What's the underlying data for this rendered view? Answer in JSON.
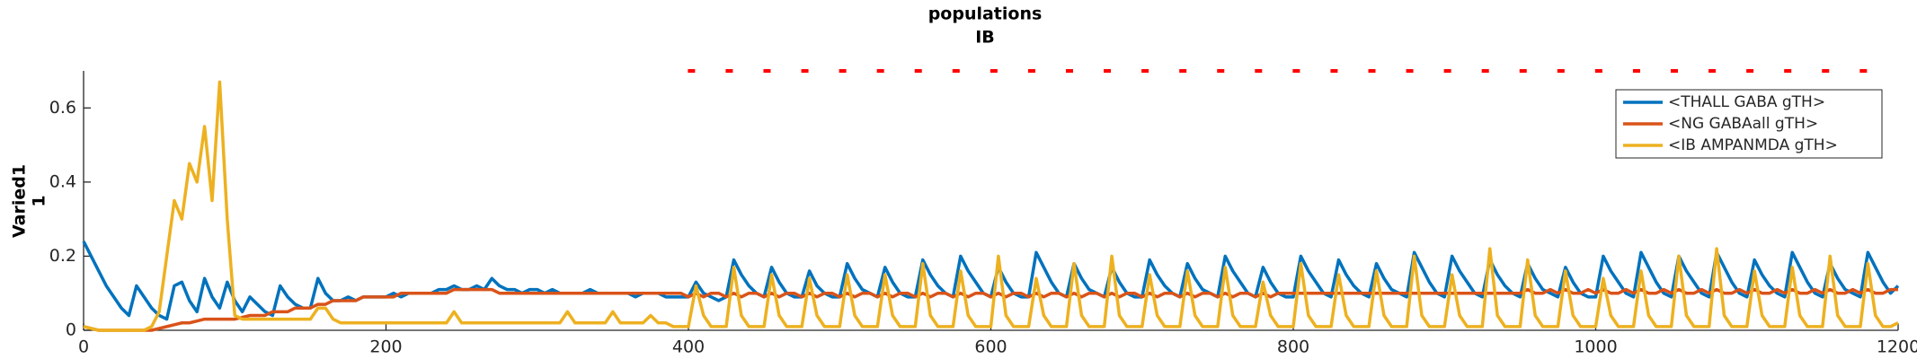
{
  "chart_data": {
    "type": "line",
    "title": "populations",
    "subtitle": "IB",
    "ylabel": [
      "Varied1",
      "1"
    ],
    "xlim": [
      0,
      1200
    ],
    "ylim": [
      0,
      0.7
    ],
    "xticks": [
      0,
      200,
      400,
      600,
      800,
      1000,
      1200
    ],
    "yticks": [
      0,
      0.2,
      0.4,
      0.6
    ],
    "grid": false,
    "legend": "northeast",
    "x": [
      0,
      5,
      10,
      15,
      20,
      25,
      30,
      35,
      40,
      45,
      50,
      55,
      60,
      65,
      70,
      75,
      80,
      85,
      90,
      95,
      100,
      105,
      110,
      115,
      120,
      125,
      130,
      135,
      140,
      145,
      150,
      155,
      160,
      165,
      170,
      175,
      180,
      185,
      190,
      195,
      200,
      205,
      210,
      215,
      220,
      225,
      230,
      235,
      240,
      245,
      250,
      255,
      260,
      265,
      270,
      275,
      280,
      285,
      290,
      295,
      300,
      305,
      310,
      315,
      320,
      325,
      330,
      335,
      340,
      345,
      350,
      355,
      360,
      365,
      370,
      375,
      380,
      385,
      390,
      395,
      400,
      405,
      410,
      415,
      420,
      425,
      430,
      435,
      440,
      445,
      450,
      455,
      460,
      465,
      470,
      475,
      480,
      485,
      490,
      495,
      500,
      505,
      510,
      515,
      520,
      525,
      530,
      535,
      540,
      545,
      550,
      555,
      560,
      565,
      570,
      575,
      580,
      585,
      590,
      595,
      600,
      605,
      610,
      615,
      620,
      625,
      630,
      635,
      640,
      645,
      650,
      655,
      660,
      665,
      670,
      675,
      680,
      685,
      690,
      695,
      700,
      705,
      710,
      715,
      720,
      725,
      730,
      735,
      740,
      745,
      750,
      755,
      760,
      765,
      770,
      775,
      780,
      785,
      790,
      795,
      800,
      805,
      810,
      815,
      820,
      825,
      830,
      835,
      840,
      845,
      850,
      855,
      860,
      865,
      870,
      875,
      880,
      885,
      890,
      895,
      900,
      905,
      910,
      915,
      920,
      925,
      930,
      935,
      940,
      945,
      950,
      955,
      960,
      965,
      970,
      975,
      980,
      985,
      990,
      995,
      1000,
      1005,
      1010,
      1015,
      1020,
      1025,
      1030,
      1035,
      1040,
      1045,
      1050,
      1055,
      1060,
      1065,
      1070,
      1075,
      1080,
      1085,
      1090,
      1095,
      1100,
      1105,
      1110,
      1115,
      1120,
      1125,
      1130,
      1135,
      1140,
      1145,
      1150,
      1155,
      1160,
      1165,
      1170,
      1175,
      1180,
      1185,
      1190,
      1195,
      1200
    ],
    "series": [
      {
        "name": "<THALL GABA gTH>",
        "color": "#0072bd",
        "values": [
          0.24,
          0.2,
          0.16,
          0.12,
          0.09,
          0.06,
          0.04,
          0.12,
          0.09,
          0.06,
          0.04,
          0.03,
          0.12,
          0.13,
          0.08,
          0.05,
          0.14,
          0.09,
          0.06,
          0.13,
          0.08,
          0.05,
          0.09,
          0.07,
          0.05,
          0.04,
          0.12,
          0.09,
          0.07,
          0.06,
          0.06,
          0.14,
          0.1,
          0.08,
          0.08,
          0.09,
          0.08,
          0.09,
          0.09,
          0.09,
          0.09,
          0.1,
          0.09,
          0.1,
          0.1,
          0.1,
          0.1,
          0.11,
          0.11,
          0.12,
          0.11,
          0.11,
          0.12,
          0.11,
          0.14,
          0.12,
          0.11,
          0.11,
          0.1,
          0.11,
          0.11,
          0.1,
          0.11,
          0.1,
          0.1,
          0.1,
          0.1,
          0.11,
          0.1,
          0.1,
          0.1,
          0.1,
          0.1,
          0.09,
          0.1,
          0.1,
          0.1,
          0.09,
          0.09,
          0.09,
          0.09,
          0.13,
          0.1,
          0.09,
          0.08,
          0.09,
          0.19,
          0.15,
          0.12,
          0.1,
          0.09,
          0.17,
          0.13,
          0.1,
          0.09,
          0.09,
          0.16,
          0.12,
          0.1,
          0.09,
          0.09,
          0.18,
          0.14,
          0.11,
          0.1,
          0.09,
          0.17,
          0.13,
          0.1,
          0.09,
          0.09,
          0.19,
          0.15,
          0.12,
          0.1,
          0.09,
          0.2,
          0.16,
          0.13,
          0.1,
          0.09,
          0.17,
          0.13,
          0.1,
          0.09,
          0.09,
          0.21,
          0.17,
          0.13,
          0.1,
          0.09,
          0.18,
          0.14,
          0.11,
          0.1,
          0.09,
          0.17,
          0.13,
          0.1,
          0.09,
          0.09,
          0.19,
          0.15,
          0.12,
          0.1,
          0.09,
          0.18,
          0.14,
          0.11,
          0.1,
          0.09,
          0.2,
          0.16,
          0.13,
          0.1,
          0.09,
          0.17,
          0.13,
          0.1,
          0.09,
          0.09,
          0.2,
          0.16,
          0.13,
          0.1,
          0.09,
          0.19,
          0.15,
          0.12,
          0.1,
          0.09,
          0.18,
          0.14,
          0.11,
          0.1,
          0.09,
          0.21,
          0.17,
          0.13,
          0.1,
          0.09,
          0.2,
          0.16,
          0.13,
          0.1,
          0.09,
          0.19,
          0.15,
          0.12,
          0.1,
          0.09,
          0.18,
          0.14,
          0.11,
          0.1,
          0.09,
          0.17,
          0.13,
          0.1,
          0.09,
          0.09,
          0.2,
          0.16,
          0.13,
          0.1,
          0.09,
          0.21,
          0.17,
          0.13,
          0.1,
          0.09,
          0.2,
          0.16,
          0.13,
          0.1,
          0.09,
          0.21,
          0.17,
          0.13,
          0.1,
          0.09,
          0.19,
          0.15,
          0.12,
          0.1,
          0.09,
          0.21,
          0.17,
          0.13,
          0.1,
          0.09,
          0.18,
          0.14,
          0.11,
          0.1,
          0.09,
          0.21,
          0.17,
          0.13,
          0.1,
          0.12
        ]
      },
      {
        "name": "<NG GABAall gTH>",
        "color": "#d95319",
        "values": [
          0.01,
          0.005,
          0,
          0,
          0,
          0,
          0,
          0,
          0,
          0,
          0.005,
          0.01,
          0.015,
          0.02,
          0.02,
          0.025,
          0.03,
          0.03,
          0.03,
          0.03,
          0.03,
          0.035,
          0.04,
          0.04,
          0.04,
          0.05,
          0.05,
          0.05,
          0.06,
          0.06,
          0.06,
          0.07,
          0.07,
          0.08,
          0.08,
          0.08,
          0.08,
          0.09,
          0.09,
          0.09,
          0.09,
          0.09,
          0.1,
          0.1,
          0.1,
          0.1,
          0.1,
          0.1,
          0.1,
          0.11,
          0.11,
          0.11,
          0.11,
          0.11,
          0.11,
          0.1,
          0.1,
          0.1,
          0.1,
          0.1,
          0.1,
          0.1,
          0.1,
          0.1,
          0.1,
          0.1,
          0.1,
          0.1,
          0.1,
          0.1,
          0.1,
          0.1,
          0.1,
          0.1,
          0.1,
          0.1,
          0.1,
          0.1,
          0.1,
          0.1,
          0.09,
          0.1,
          0.09,
          0.1,
          0.1,
          0.09,
          0.1,
          0.09,
          0.1,
          0.1,
          0.09,
          0.1,
          0.09,
          0.1,
          0.1,
          0.09,
          0.1,
          0.09,
          0.1,
          0.1,
          0.09,
          0.1,
          0.09,
          0.1,
          0.1,
          0.09,
          0.1,
          0.09,
          0.1,
          0.1,
          0.09,
          0.1,
          0.09,
          0.1,
          0.1,
          0.09,
          0.1,
          0.09,
          0.1,
          0.1,
          0.09,
          0.1,
          0.09,
          0.1,
          0.1,
          0.09,
          0.1,
          0.09,
          0.1,
          0.1,
          0.09,
          0.1,
          0.09,
          0.1,
          0.1,
          0.09,
          0.1,
          0.09,
          0.1,
          0.1,
          0.09,
          0.1,
          0.09,
          0.1,
          0.1,
          0.09,
          0.1,
          0.09,
          0.1,
          0.1,
          0.09,
          0.1,
          0.09,
          0.1,
          0.1,
          0.09,
          0.1,
          0.09,
          0.1,
          0.1,
          0.1,
          0.1,
          0.1,
          0.1,
          0.1,
          0.1,
          0.1,
          0.1,
          0.1,
          0.1,
          0.1,
          0.1,
          0.1,
          0.1,
          0.1,
          0.1,
          0.1,
          0.1,
          0.1,
          0.1,
          0.1,
          0.1,
          0.1,
          0.1,
          0.1,
          0.1,
          0.1,
          0.1,
          0.1,
          0.1,
          0.1,
          0.11,
          0.1,
          0.1,
          0.11,
          0.1,
          0.11,
          0.1,
          0.1,
          0.11,
          0.1,
          0.11,
          0.1,
          0.1,
          0.11,
          0.1,
          0.11,
          0.1,
          0.1,
          0.11,
          0.1,
          0.11,
          0.1,
          0.1,
          0.11,
          0.1,
          0.11,
          0.1,
          0.1,
          0.11,
          0.1,
          0.11,
          0.1,
          0.1,
          0.11,
          0.1,
          0.11,
          0.1,
          0.1,
          0.11,
          0.1,
          0.11,
          0.1,
          0.1,
          0.11,
          0.1,
          0.11,
          0.1,
          0.1,
          0.11,
          0.11
        ]
      },
      {
        "name": "<IB AMPANMDA gTH>",
        "color": "#edb120",
        "values": [
          0.01,
          0.005,
          0,
          0,
          0,
          0,
          0,
          0,
          0,
          0.01,
          0.05,
          0.2,
          0.35,
          0.3,
          0.45,
          0.4,
          0.55,
          0.35,
          0.67,
          0.3,
          0.04,
          0.03,
          0.03,
          0.03,
          0.03,
          0.03,
          0.03,
          0.03,
          0.03,
          0.03,
          0.03,
          0.06,
          0.06,
          0.03,
          0.02,
          0.02,
          0.02,
          0.02,
          0.02,
          0.02,
          0.02,
          0.02,
          0.02,
          0.02,
          0.02,
          0.02,
          0.02,
          0.02,
          0.02,
          0.05,
          0.02,
          0.02,
          0.02,
          0.02,
          0.02,
          0.02,
          0.02,
          0.02,
          0.02,
          0.02,
          0.02,
          0.02,
          0.02,
          0.02,
          0.05,
          0.02,
          0.02,
          0.02,
          0.02,
          0.02,
          0.05,
          0.02,
          0.02,
          0.02,
          0.02,
          0.04,
          0.02,
          0.02,
          0.01,
          0.01,
          0.01,
          0.12,
          0.04,
          0.01,
          0.01,
          0.01,
          0.17,
          0.04,
          0.01,
          0.01,
          0.01,
          0.15,
          0.04,
          0.01,
          0.01,
          0.01,
          0.14,
          0.04,
          0.01,
          0.01,
          0.01,
          0.15,
          0.04,
          0.01,
          0.01,
          0.01,
          0.15,
          0.04,
          0.01,
          0.01,
          0.01,
          0.18,
          0.04,
          0.01,
          0.01,
          0.01,
          0.16,
          0.04,
          0.01,
          0.01,
          0.01,
          0.2,
          0.04,
          0.01,
          0.01,
          0.01,
          0.14,
          0.04,
          0.01,
          0.01,
          0.01,
          0.18,
          0.04,
          0.01,
          0.01,
          0.01,
          0.2,
          0.04,
          0.01,
          0.01,
          0.01,
          0.15,
          0.04,
          0.01,
          0.01,
          0.01,
          0.16,
          0.04,
          0.01,
          0.01,
          0.01,
          0.17,
          0.04,
          0.01,
          0.01,
          0.01,
          0.13,
          0.04,
          0.01,
          0.01,
          0.01,
          0.18,
          0.04,
          0.01,
          0.01,
          0.01,
          0.15,
          0.04,
          0.01,
          0.01,
          0.01,
          0.16,
          0.04,
          0.01,
          0.01,
          0.01,
          0.2,
          0.04,
          0.01,
          0.01,
          0.01,
          0.15,
          0.04,
          0.01,
          0.01,
          0.01,
          0.22,
          0.04,
          0.01,
          0.01,
          0.01,
          0.19,
          0.04,
          0.01,
          0.01,
          0.01,
          0.16,
          0.04,
          0.01,
          0.01,
          0.01,
          0.14,
          0.04,
          0.01,
          0.01,
          0.01,
          0.16,
          0.04,
          0.01,
          0.01,
          0.01,
          0.2,
          0.04,
          0.01,
          0.01,
          0.01,
          0.22,
          0.04,
          0.01,
          0.01,
          0.01,
          0.16,
          0.04,
          0.01,
          0.01,
          0.01,
          0.17,
          0.04,
          0.01,
          0.01,
          0.01,
          0.2,
          0.04,
          0.01,
          0.01,
          0.01,
          0.18,
          0.04,
          0.01,
          0.01,
          0.02
        ]
      }
    ],
    "raster": {
      "color": "#ff0000",
      "x": [
        402,
        427,
        452,
        477,
        502,
        527,
        552,
        577,
        602,
        627,
        652,
        677,
        702,
        727,
        752,
        777,
        802,
        827,
        852,
        877,
        902,
        927,
        952,
        977,
        1002,
        1027,
        1052,
        1077,
        1102,
        1127,
        1152,
        1177
      ],
      "values": [
        0.7,
        0.7,
        0.7,
        0.7,
        0.7,
        0.7,
        0.7,
        0.7,
        0.7,
        0.7,
        0.7,
        0.7,
        0.7,
        0.7,
        0.7,
        0.7,
        0.7,
        0.7,
        0.7,
        0.7,
        0.7,
        0.7,
        0.7,
        0.7,
        0.7,
        0.7,
        0.7,
        0.7,
        0.7,
        0.7,
        0.7,
        0.7
      ]
    }
  }
}
